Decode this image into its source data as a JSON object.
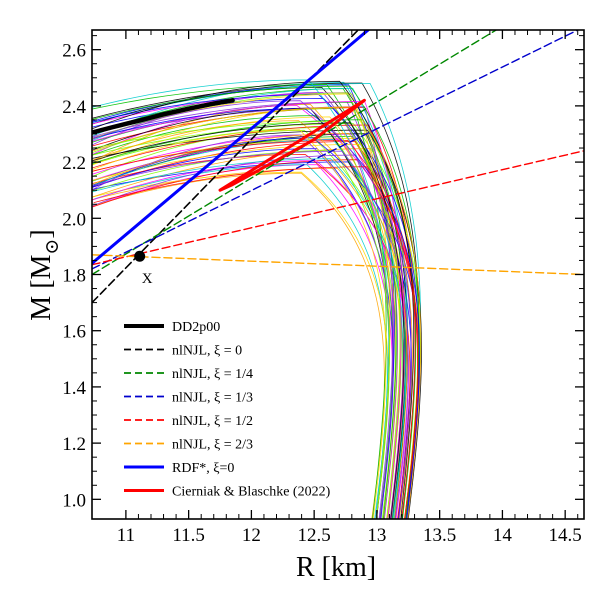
{
  "chart_data": {
    "type": "line",
    "xlabel": "R [km]",
    "ylabel_main": "M [M",
    "ylabel_sub": "⊙",
    "ylabel_end": "]",
    "xlim": [
      10.73,
      14.65
    ],
    "ylim": [
      0.93,
      2.67
    ],
    "x_ticks": [
      11,
      11.5,
      12,
      12.5,
      13,
      13.5,
      14,
      14.5
    ],
    "x_tick_labels": [
      "11",
      "11.5",
      "12",
      "12.5",
      "13",
      "13.5",
      "14",
      "14.5"
    ],
    "y_ticks": [
      1.0,
      1.2,
      1.4,
      1.6,
      1.8,
      2.0,
      2.2,
      2.4,
      2.6
    ],
    "y_tick_labels": [
      "1.0",
      "1.2",
      "1.4",
      "1.6",
      "1.8",
      "2.0",
      "2.2",
      "2.4",
      "2.6"
    ],
    "annotation": {
      "text": "X",
      "point": [
        11.11,
        1.865
      ]
    },
    "ensemble": {
      "description_colors": [
        "#ff00ff",
        "#00c000",
        "#0000ff",
        "#ff0000",
        "#00cccc",
        "#ffd700",
        "#000000",
        "#ffa500",
        "#8a2be2",
        "#7cfc00"
      ]
    },
    "series": [
      {
        "name": "DD2p00",
        "color": "#000000",
        "dash": "solid",
        "width": 4.5,
        "points": [
          [
            10.73,
            2.305
          ],
          [
            10.9,
            2.325
          ],
          [
            11.1,
            2.347
          ],
          [
            11.3,
            2.37
          ],
          [
            11.5,
            2.39
          ],
          [
            11.7,
            2.408
          ],
          [
            11.85,
            2.42
          ]
        ]
      },
      {
        "name": "nlNJL, ξ = 0",
        "color": "#000000",
        "dash": "dashed",
        "width": 1.6,
        "points": [
          [
            10.73,
            1.7
          ],
          [
            12.85,
            2.67
          ]
        ]
      },
      {
        "name": "nlNJL, ξ = 1/4",
        "color": "#008800",
        "dash": "dashed",
        "width": 1.4,
        "points": [
          [
            10.73,
            1.8
          ],
          [
            13.95,
            2.67
          ]
        ]
      },
      {
        "name": "nlNJL, ξ = 1/3",
        "color": "#0000cc",
        "dash": "dashed",
        "width": 1.4,
        "points": [
          [
            10.73,
            1.82
          ],
          [
            14.6,
            2.67
          ]
        ]
      },
      {
        "name": "nlNJL, ξ = 1/2",
        "color": "#ff0000",
        "dash": "dashed",
        "width": 1.4,
        "points": [
          [
            10.73,
            1.835
          ],
          [
            14.65,
            2.24
          ]
        ]
      },
      {
        "name": "nlNJL, ξ = 2/3",
        "color": "#ffa500",
        "dash": "dashed",
        "width": 1.4,
        "points": [
          [
            10.73,
            1.87
          ],
          [
            14.65,
            1.8
          ]
        ]
      },
      {
        "name": "RDF*, ξ=0",
        "color": "#0000ff",
        "dash": "solid",
        "width": 3,
        "points": [
          [
            10.73,
            1.84
          ],
          [
            12.93,
            2.67
          ]
        ]
      },
      {
        "name": "Cierniak & Blaschke (2022)",
        "color": "#ff0000",
        "dash": "solid",
        "width": 3,
        "points": [
          [
            11.75,
            2.1
          ],
          [
            12.9,
            2.42
          ],
          [
            12.5,
            2.28
          ],
          [
            11.85,
            2.12
          ]
        ]
      }
    ]
  }
}
